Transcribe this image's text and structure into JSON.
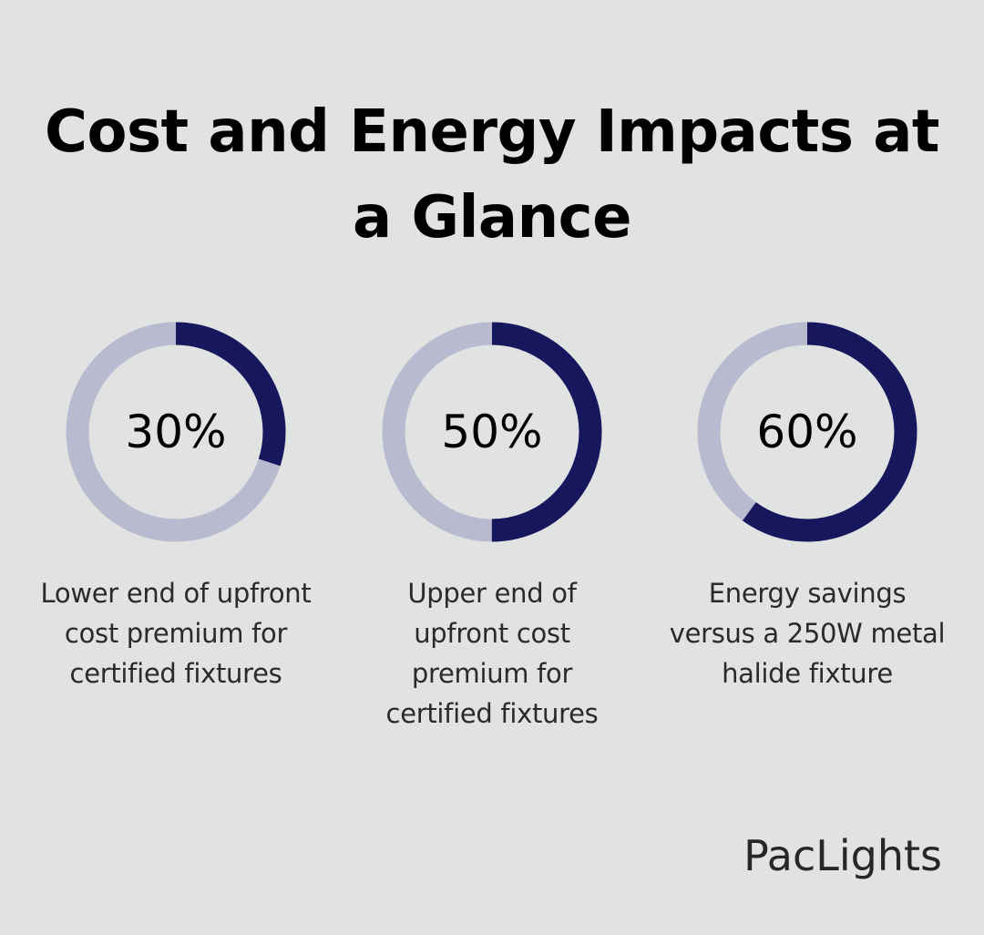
{
  "title": "Cost and Energy Impacts at a Glance",
  "colors": {
    "background": "#e1e2e2",
    "ring_filled": "#17175e",
    "ring_track": "#b9b9d0",
    "text": "#000000"
  },
  "chart_data": {
    "type": "donut",
    "title": "Cost and Energy Impacts at a Glance",
    "items": [
      {
        "value": 30,
        "label": "30%",
        "caption": "Lower end of upfront cost premium for certified fixtures"
      },
      {
        "value": 50,
        "label": "50%",
        "caption": "Upper end of upfront cost premium for certified fixtures"
      },
      {
        "value": 60,
        "label": "60%",
        "caption": "Energy savings versus a 250W metal halide fixture"
      }
    ]
  },
  "brand": {
    "logo_text": "PacLights"
  }
}
